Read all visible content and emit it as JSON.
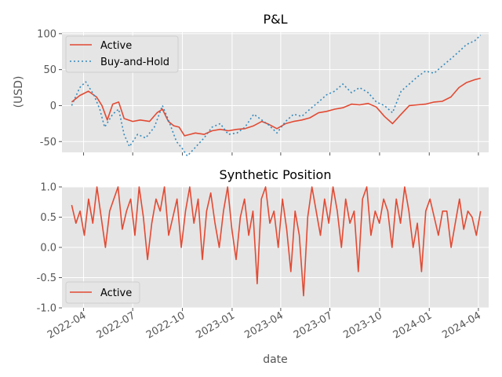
{
  "chart_data": [
    {
      "type": "line",
      "title": "P&L",
      "xlabel": "",
      "ylabel": "(USD)",
      "ylim": [
        -65,
        102
      ],
      "yticks": [
        -50,
        0,
        50,
        100
      ],
      "grid": true,
      "legend_position": "upper-left",
      "series": [
        {
          "name": "Active",
          "style": "solid",
          "color": "#E24A33",
          "points": [
            [
              "2022-03-10",
              5
            ],
            [
              "2022-03-25",
              14
            ],
            [
              "2022-04-10",
              20
            ],
            [
              "2022-04-25",
              12
            ],
            [
              "2022-05-05",
              0
            ],
            [
              "2022-05-15",
              -20
            ],
            [
              "2022-05-25",
              2
            ],
            [
              "2022-06-05",
              5
            ],
            [
              "2022-06-15",
              -18
            ],
            [
              "2022-07-01",
              -22
            ],
            [
              "2022-07-15",
              -20
            ],
            [
              "2022-08-01",
              -22
            ],
            [
              "2022-08-15",
              -10
            ],
            [
              "2022-08-25",
              -5
            ],
            [
              "2022-09-05",
              -22
            ],
            [
              "2022-09-15",
              -28
            ],
            [
              "2022-09-25",
              -30
            ],
            [
              "2022-10-05",
              -42
            ],
            [
              "2022-10-15",
              -40
            ],
            [
              "2022-10-25",
              -38
            ],
            [
              "2022-11-10",
              -40
            ],
            [
              "2022-11-25",
              -35
            ],
            [
              "2022-12-10",
              -33
            ],
            [
              "2022-12-25",
              -35
            ],
            [
              "2023-01-10",
              -33
            ],
            [
              "2023-01-25",
              -32
            ],
            [
              "2023-02-10",
              -28
            ],
            [
              "2023-02-25",
              -22
            ],
            [
              "2023-03-10",
              -26
            ],
            [
              "2023-03-25",
              -32
            ],
            [
              "2023-04-10",
              -25
            ],
            [
              "2023-04-25",
              -22
            ],
            [
              "2023-05-10",
              -20
            ],
            [
              "2023-05-25",
              -17
            ],
            [
              "2023-06-10",
              -10
            ],
            [
              "2023-06-25",
              -8
            ],
            [
              "2023-07-10",
              -5
            ],
            [
              "2023-07-25",
              -3
            ],
            [
              "2023-08-10",
              2
            ],
            [
              "2023-08-25",
              1
            ],
            [
              "2023-09-10",
              3
            ],
            [
              "2023-09-25",
              -2
            ],
            [
              "2023-10-10",
              -15
            ],
            [
              "2023-10-25",
              -25
            ],
            [
              "2023-11-10",
              -12
            ],
            [
              "2023-11-25",
              0
            ],
            [
              "2023-12-10",
              1
            ],
            [
              "2023-12-25",
              2
            ],
            [
              "2024-01-10",
              5
            ],
            [
              "2024-01-25",
              6
            ],
            [
              "2024-02-10",
              12
            ],
            [
              "2024-02-25",
              25
            ],
            [
              "2024-03-10",
              32
            ],
            [
              "2024-03-25",
              36
            ],
            [
              "2024-04-05",
              38
            ]
          ]
        },
        {
          "name": "Buy-and-Hold",
          "style": "dotted",
          "color": "#348ABD",
          "points": [
            [
              "2022-03-10",
              0
            ],
            [
              "2022-03-25",
              25
            ],
            [
              "2022-04-05",
              33
            ],
            [
              "2022-04-20",
              15
            ],
            [
              "2022-05-01",
              -5
            ],
            [
              "2022-05-10",
              -30
            ],
            [
              "2022-05-25",
              -12
            ],
            [
              "2022-06-05",
              -5
            ],
            [
              "2022-06-15",
              -40
            ],
            [
              "2022-06-25",
              -57
            ],
            [
              "2022-07-10",
              -40
            ],
            [
              "2022-07-25",
              -45
            ],
            [
              "2022-08-10",
              -30
            ],
            [
              "2022-08-25",
              0
            ],
            [
              "2022-09-05",
              -20
            ],
            [
              "2022-09-20",
              -50
            ],
            [
              "2022-10-01",
              -60
            ],
            [
              "2022-10-10",
              -70
            ],
            [
              "2022-10-25",
              -58
            ],
            [
              "2022-11-10",
              -45
            ],
            [
              "2022-11-25",
              -30
            ],
            [
              "2022-12-10",
              -25
            ],
            [
              "2022-12-25",
              -40
            ],
            [
              "2023-01-10",
              -38
            ],
            [
              "2023-01-25",
              -30
            ],
            [
              "2023-02-10",
              -12
            ],
            [
              "2023-02-25",
              -20
            ],
            [
              "2023-03-10",
              -27
            ],
            [
              "2023-03-25",
              -38
            ],
            [
              "2023-04-10",
              -22
            ],
            [
              "2023-04-25",
              -12
            ],
            [
              "2023-05-10",
              -15
            ],
            [
              "2023-05-25",
              -5
            ],
            [
              "2023-06-10",
              5
            ],
            [
              "2023-06-25",
              15
            ],
            [
              "2023-07-10",
              20
            ],
            [
              "2023-07-25",
              30
            ],
            [
              "2023-08-10",
              18
            ],
            [
              "2023-08-25",
              25
            ],
            [
              "2023-09-10",
              18
            ],
            [
              "2023-09-25",
              5
            ],
            [
              "2023-10-10",
              0
            ],
            [
              "2023-10-25",
              -10
            ],
            [
              "2023-11-10",
              20
            ],
            [
              "2023-11-25",
              30
            ],
            [
              "2023-12-10",
              40
            ],
            [
              "2023-12-25",
              48
            ],
            [
              "2024-01-10",
              45
            ],
            [
              "2024-01-25",
              55
            ],
            [
              "2024-02-10",
              65
            ],
            [
              "2024-02-25",
              75
            ],
            [
              "2024-03-10",
              85
            ],
            [
              "2024-03-25",
              90
            ],
            [
              "2024-04-05",
              98
            ]
          ]
        }
      ]
    },
    {
      "type": "line",
      "title": "Synthetic Position",
      "xlabel": "date",
      "ylabel": "",
      "ylim": [
        -1.0,
        1.0
      ],
      "yticks": [
        "-1.0",
        "-0.5",
        "0.0",
        "0.5",
        "1.0"
      ],
      "grid": true,
      "legend_position": "lower-left",
      "series": [
        {
          "name": "Active",
          "style": "solid",
          "color": "#E24A33",
          "x_start": "2022-03-10",
          "x_end": "2024-04-05",
          "values": [
            0.7,
            0.4,
            0.6,
            0.2,
            0.8,
            0.4,
            1.0,
            0.5,
            0.0,
            0.6,
            0.8,
            1.0,
            0.3,
            0.6,
            0.8,
            0.2,
            1.0,
            0.5,
            -0.2,
            0.4,
            0.8,
            0.6,
            1.0,
            0.2,
            0.5,
            0.8,
            0.0,
            0.6,
            1.0,
            0.4,
            0.8,
            -0.2,
            0.6,
            0.9,
            0.4,
            0.0,
            0.6,
            1.0,
            0.3,
            -0.2,
            0.5,
            0.8,
            0.2,
            0.6,
            -0.6,
            0.8,
            1.0,
            0.4,
            0.6,
            0.0,
            0.8,
            0.3,
            -0.4,
            0.6,
            0.2,
            -0.8,
            0.5,
            1.0,
            0.6,
            0.2,
            0.8,
            0.4,
            1.0,
            0.6,
            0.0,
            0.8,
            0.4,
            0.6,
            -0.4,
            0.8,
            1.0,
            0.2,
            0.6,
            0.4,
            0.8,
            0.6,
            0.0,
            0.8,
            0.4,
            1.0,
            0.6,
            0.0,
            0.4,
            -0.4,
            0.6,
            0.8,
            0.5,
            0.2,
            0.6,
            0.6,
            0.0,
            0.4,
            0.8,
            0.3,
            0.6,
            0.5,
            0.2,
            0.6
          ]
        }
      ]
    }
  ],
  "x_axis": {
    "label": "date",
    "range": [
      "2022-02-20",
      "2024-04-20"
    ],
    "ticks": [
      {
        "date": "2022-04-01",
        "label": "2022-04"
      },
      {
        "date": "2022-07-01",
        "label": "2022-07"
      },
      {
        "date": "2022-10-01",
        "label": "2022-10"
      },
      {
        "date": "2023-01-01",
        "label": "2023-01"
      },
      {
        "date": "2023-04-01",
        "label": "2023-04"
      },
      {
        "date": "2023-07-01",
        "label": "2023-07"
      },
      {
        "date": "2023-10-01",
        "label": "2023-10"
      },
      {
        "date": "2024-01-01",
        "label": "2024-01"
      },
      {
        "date": "2024-04-01",
        "label": "2024-04"
      }
    ]
  },
  "style": {
    "panel_background": "#E5E5E5",
    "grid_color": "#FFFFFF",
    "text_color": "#555555",
    "title_color": "#000000"
  }
}
